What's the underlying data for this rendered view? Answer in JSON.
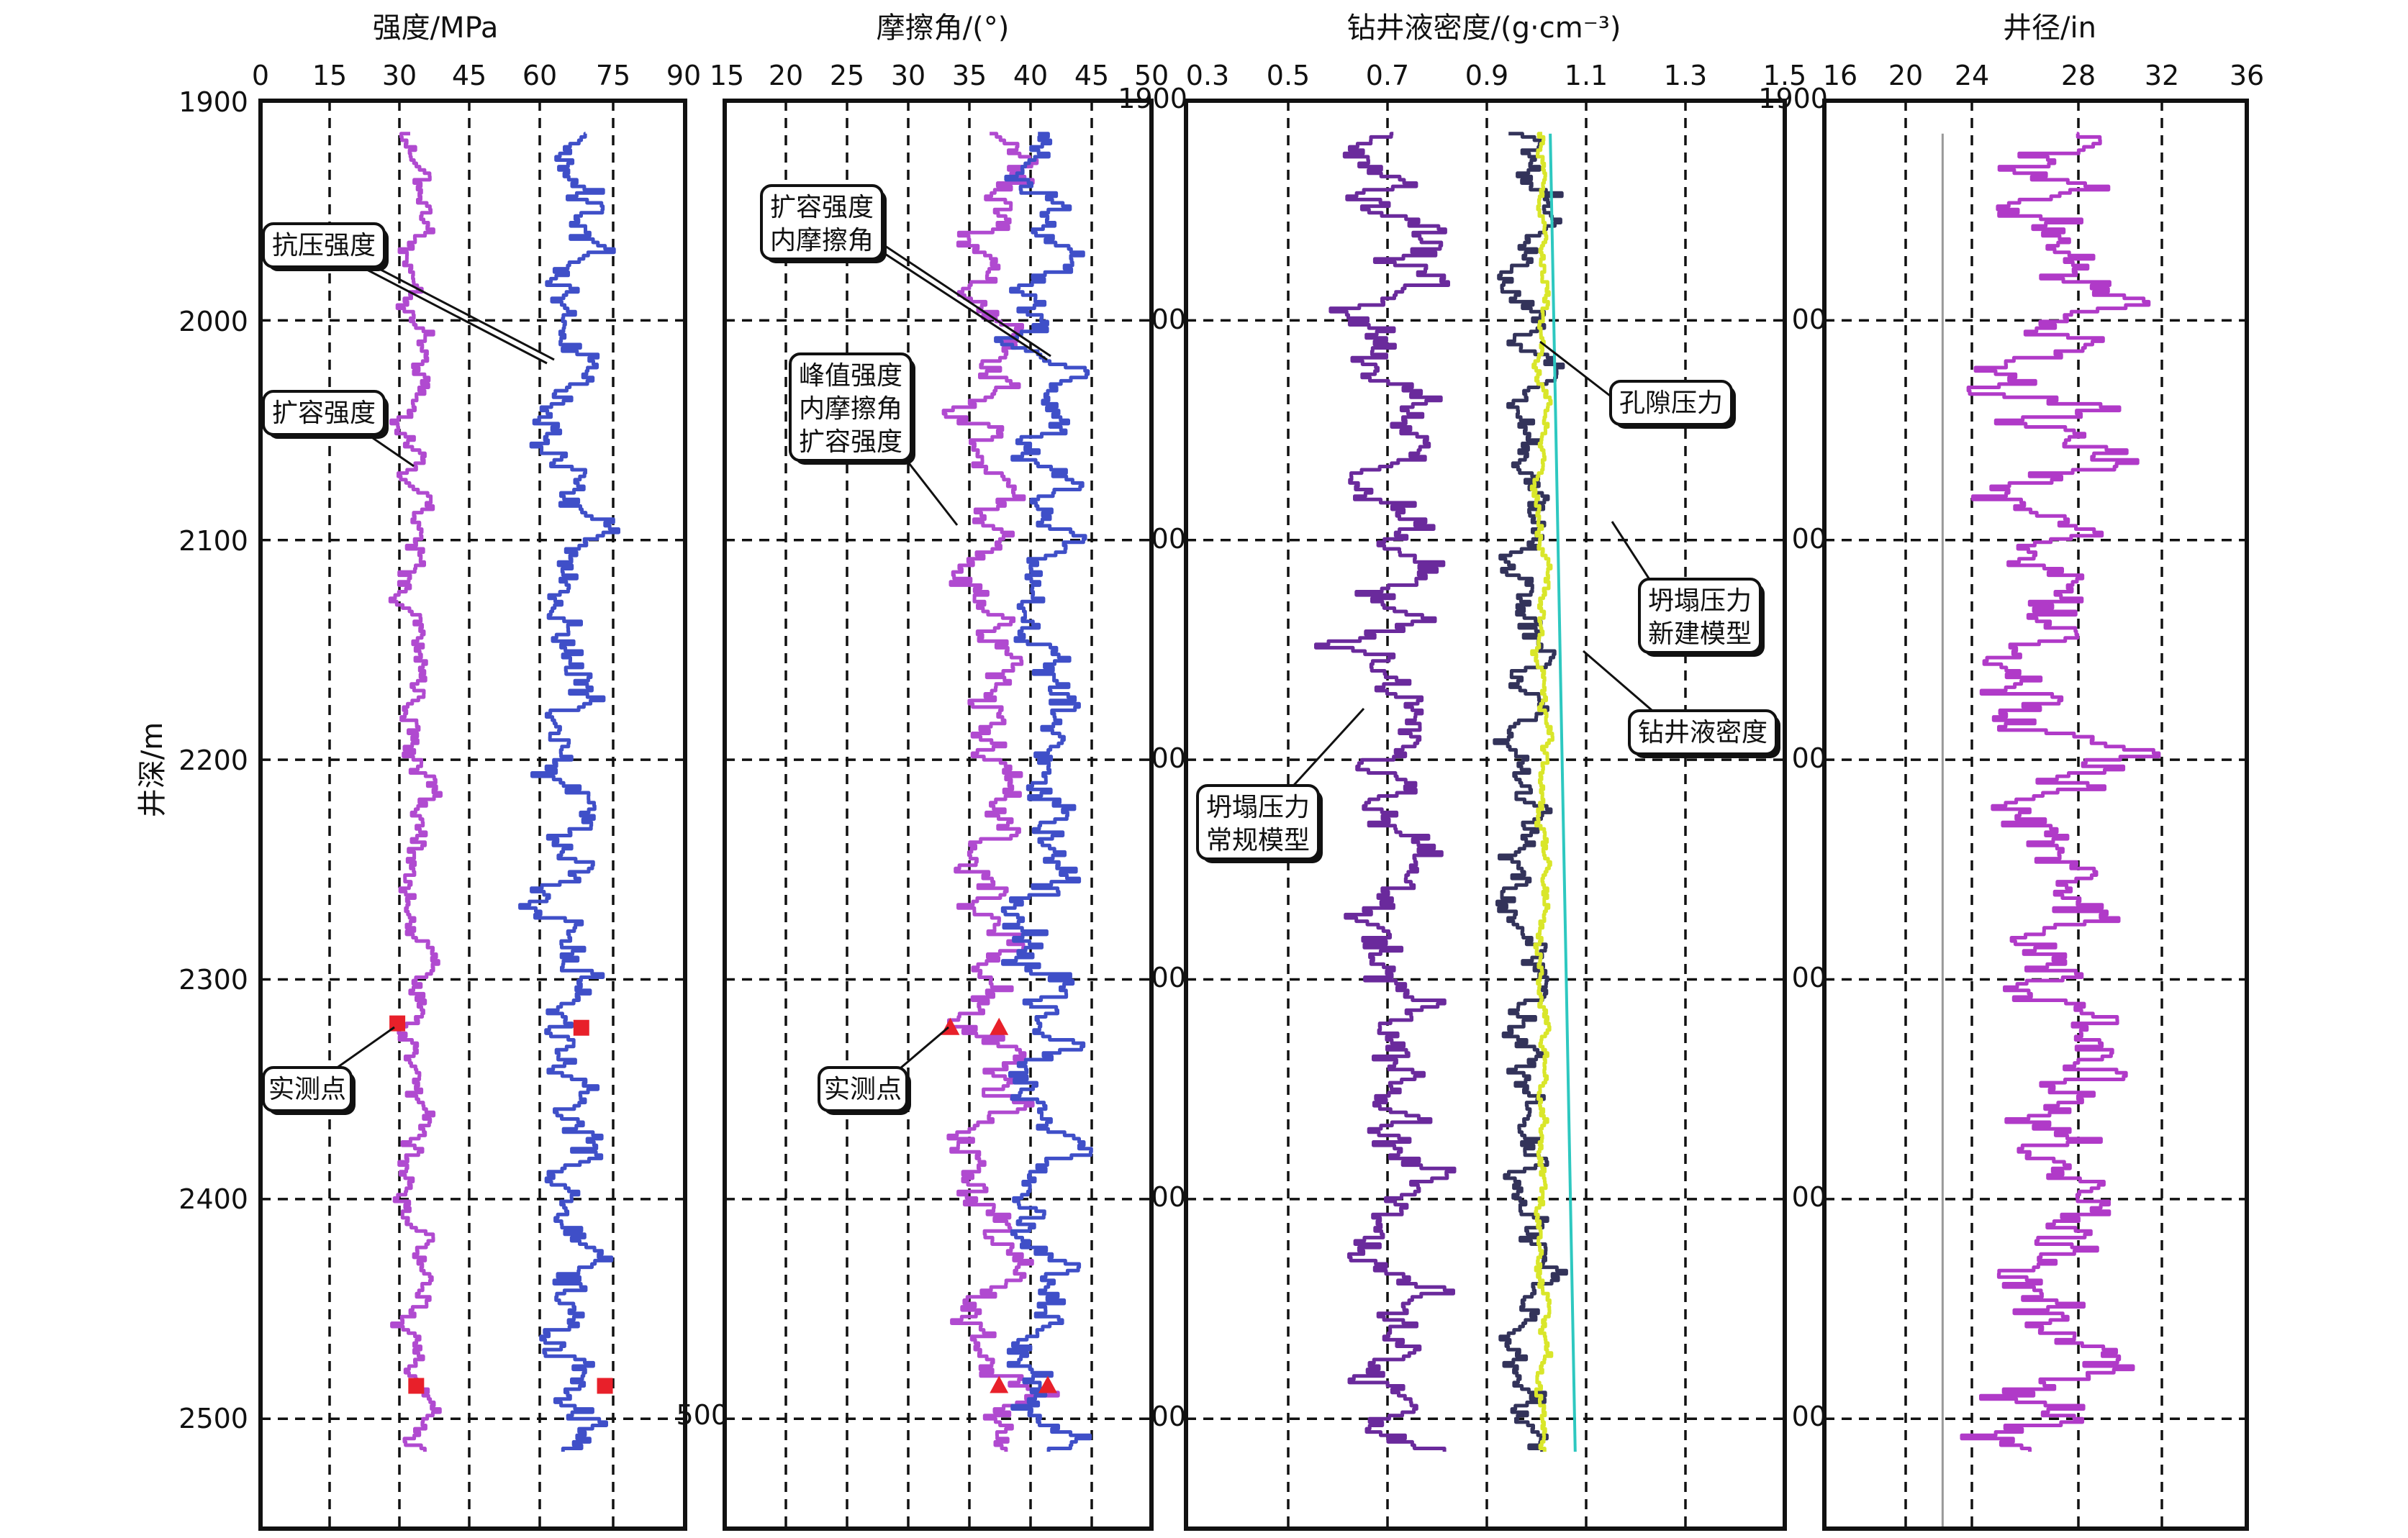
{
  "chart_data": {
    "type": "line",
    "y_axis": {
      "label": "井深/m",
      "range": [
        1900,
        2550
      ],
      "ticks": [
        "1900",
        "2000",
        "2100",
        "2200",
        "2300",
        "2400",
        "2500"
      ],
      "inverted": true,
      "stray_labels": [
        "1900",
        "00",
        "00",
        "00",
        "00",
        "00",
        "00",
        "500"
      ]
    },
    "grid": true,
    "tracks": [
      {
        "id": "strength",
        "title": "强度/MPa",
        "xlim": [
          0,
          90
        ],
        "xticks": [
          "0",
          "15",
          "30",
          "45",
          "60",
          "75",
          "90"
        ],
        "series": [
          {
            "key": "dilatancy",
            "color": "#b04ad0",
            "mean": 33,
            "amp": 3.2,
            "seed": 11
          },
          {
            "key": "compressive",
            "color": "#3f4fc8",
            "mean": 66,
            "amp": 6.5,
            "seed": 23
          }
        ],
        "measured_points": [
          {
            "depth": 2320,
            "value": 29
          },
          {
            "depth": 2322,
            "value": 68
          },
          {
            "depth": 2485,
            "value": 33
          },
          {
            "depth": 2485,
            "value": 73
          }
        ],
        "annotations": [
          {
            "text": [
              "抗压强度"
            ]
          },
          {
            "text": [
              "扩容强度"
            ]
          },
          {
            "text": [
              "实测点"
            ]
          }
        ]
      },
      {
        "id": "friction",
        "title": "摩擦角/(°)",
        "xlim": [
          15,
          50
        ],
        "xticks": [
          "15",
          "20",
          "25",
          "30",
          "35",
          "40",
          "45",
          "50"
        ],
        "series": [
          {
            "key": "dilatancy_friction",
            "color": "#b04ad0",
            "mean": 37,
            "amp": 2.6,
            "seed": 37
          },
          {
            "key": "internal_friction",
            "color": "#3f4fc8",
            "mean": 41,
            "amp": 2.6,
            "seed": 41
          }
        ],
        "measured_points": [
          {
            "depth": 2322,
            "value": 33.5
          },
          {
            "depth": 2322,
            "value": 37.5
          },
          {
            "depth": 2485,
            "value": 37.5
          },
          {
            "depth": 2485,
            "value": 41.5
          }
        ],
        "annotations": [
          {
            "text": [
              "扩容强度",
              "内摩擦角"
            ]
          },
          {
            "text": [
              "峰值强度",
              "内摩擦角",
              "扩容强度"
            ]
          },
          {
            "text": [
              "实测点"
            ]
          }
        ]
      },
      {
        "id": "density",
        "title": "钻井液密度/(g·cm⁻³)",
        "xlim": [
          0.3,
          1.5
        ],
        "xticks": [
          "0.3",
          "0.5",
          "0.7",
          "0.9",
          "1.1",
          "1.3",
          "1.5"
        ],
        "series": [
          {
            "key": "collapse_conventional",
            "color": "#6a2a9c",
            "mean": 0.72,
            "amp": 0.085,
            "seed": 53
          },
          {
            "key": "collapse_new",
            "color": "#33335a",
            "mean": 0.985,
            "amp": 0.045,
            "seed": 61
          },
          {
            "key": "mud_density",
            "color": "#d9e62a",
            "mean": 1.015,
            "amp": 0.012,
            "seed": 71
          },
          {
            "key": "pore_pressure",
            "color": "#2ec8c0",
            "start": 1.03,
            "end": 1.08
          }
        ],
        "annotations": [
          {
            "text": [
              "孔隙压力"
            ]
          },
          {
            "text": [
              "坍塌压力",
              "新建模型"
            ]
          },
          {
            "text": [
              "钻井液密度"
            ]
          },
          {
            "text": [
              "坍塌压力",
              "常规模型"
            ]
          }
        ]
      },
      {
        "id": "caliper",
        "title": "井径/in",
        "xlim": [
          16,
          36
        ],
        "xticks": [
          "16",
          "20",
          "24",
          "28",
          "32",
          "36"
        ],
        "series": [
          {
            "key": "caliper",
            "color": "#b03ac8",
            "mean": 27,
            "amp": 3.0,
            "seed": 89
          },
          {
            "key": "bit_size",
            "color": "#9a9a9a",
            "value": 21.6
          }
        ]
      }
    ]
  }
}
